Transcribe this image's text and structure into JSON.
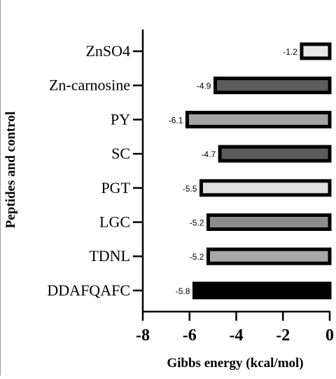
{
  "chart_data": {
    "type": "bar",
    "orientation": "horizontal",
    "ylabel": "Peptides and control",
    "xlabel": "Gibbs energy (kcal/mol)",
    "xlim": [
      -8,
      0
    ],
    "x_ticks": [
      "-8",
      "-6",
      "-4",
      "-2",
      "0"
    ],
    "grid": false,
    "categories": [
      "ZnSO4",
      "Zn-carnosine",
      "PY",
      "SC",
      "PGT",
      "LGC",
      "TDNL",
      "DDAFQAFC"
    ],
    "values": [
      -1.2,
      -4.9,
      -6.1,
      -4.7,
      -5.5,
      -5.2,
      -5.2,
      -5.8
    ],
    "data_labels": [
      "-1.2",
      "-4.9",
      "-6.1",
      "-4.7",
      "-5.5",
      "-5.2",
      "-5.2",
      "-5.8"
    ],
    "bar_colors": [
      "#e8e8e8",
      "#5c5c5c",
      "#a4a4a4",
      "#5c5c5c",
      "#e0e0e0",
      "#8c8c8c",
      "#a8a8a8",
      "#000000"
    ]
  }
}
